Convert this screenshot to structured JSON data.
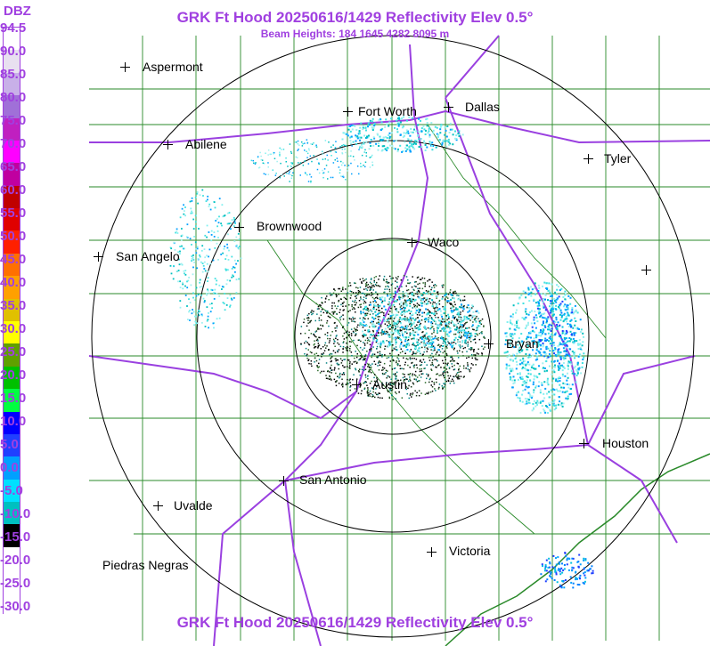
{
  "header": {
    "title": "GRK Ft Hood 20250616/1429 Reflectivity Elev 0.5°",
    "beam_heights": "Beam Heights: 184 1645 4282 8095 m"
  },
  "footer": {
    "title": "GRK Ft Hood 20250616/1429 Reflectivity Elev 0.5°"
  },
  "legend": {
    "unit": "DBZ",
    "ticks": [
      "94.5",
      "90.0",
      "85.0",
      "80.0",
      "75.0",
      "70.0",
      "65.0",
      "60.0",
      "55.0",
      "50.0",
      "45.0",
      "40.0",
      "35.0",
      "30.0",
      "25.0",
      "20.0",
      "15.0",
      "10.0",
      "5.0",
      "0.0",
      "-5.0",
      "-10.0",
      "-15.0",
      "-20.0",
      "-25.0",
      "-30.0"
    ],
    "colors": [
      "#ffffff",
      "#e8e0f0",
      "#c8b0e8",
      "#a070d8",
      "#c020c0",
      "#ff00ff",
      "#c000a0",
      "#c00000",
      "#e00000",
      "#ff2000",
      "#ff7000",
      "#ffa000",
      "#e0c000",
      "#ffff00",
      "#60a000",
      "#00c000",
      "#00ff40",
      "#0000ff",
      "#2040ff",
      "#00a0ff",
      "#00e0ff",
      "#00c0c0",
      "#000000",
      "#ffffff",
      "#ffffff",
      "#ffffff"
    ]
  },
  "cities": [
    {
      "name": "Aspermont",
      "label": "Aspermont"
    },
    {
      "name": "Fort Worth",
      "label": "Fort Worth"
    },
    {
      "name": "Dallas",
      "label": "Dallas"
    },
    {
      "name": "Abilene",
      "label": "Abilene"
    },
    {
      "name": "Tyler",
      "label": "Tyler"
    },
    {
      "name": "Brownwood",
      "label": "Brownwood"
    },
    {
      "name": "Waco",
      "label": "Waco"
    },
    {
      "name": "San Angelo",
      "label": "San Angelo"
    },
    {
      "name": "Bryan",
      "label": "Bryan"
    },
    {
      "name": "Austin",
      "label": "Austin"
    },
    {
      "name": "Houston",
      "label": "Houston"
    },
    {
      "name": "San Antonio",
      "label": "San Antonio"
    },
    {
      "name": "Uvalde",
      "label": "Uvalde"
    },
    {
      "name": "Piedras Negras",
      "label": "Piedras Negras"
    },
    {
      "name": "Victoria",
      "label": "Victoria"
    }
  ],
  "colors": {
    "title": "#a040e0",
    "highway": "#9a40e0",
    "county_lines": "#208020",
    "range_rings": "#000000"
  }
}
